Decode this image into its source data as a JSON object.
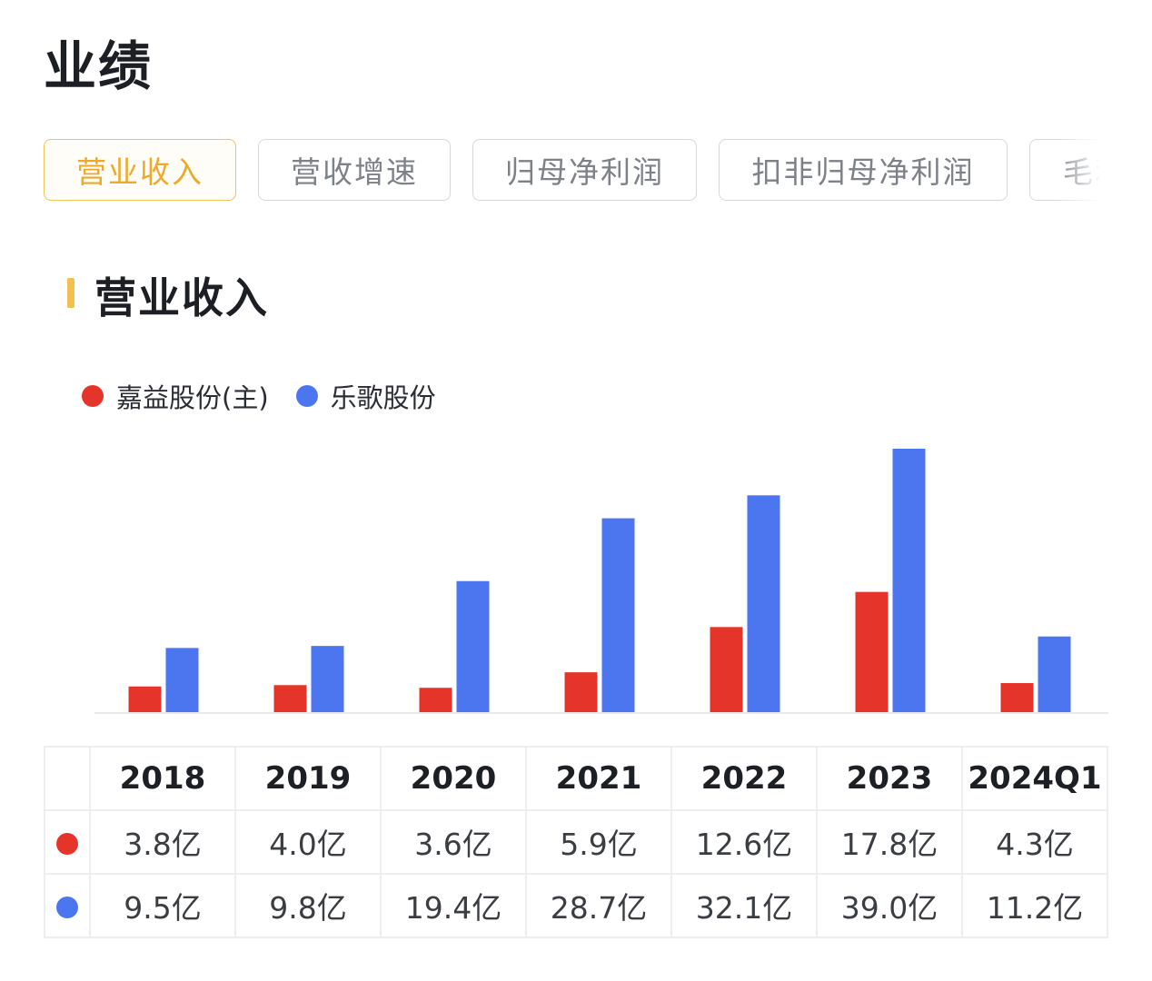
{
  "page_title": "业绩",
  "tabs": [
    {
      "label": "营业收入",
      "active": true
    },
    {
      "label": "营收增速",
      "active": false
    },
    {
      "label": "归母净利润",
      "active": false
    },
    {
      "label": "扣非归母净利润",
      "active": false
    },
    {
      "label": "毛利",
      "active": false
    }
  ],
  "section_title": "营业收入",
  "colors": {
    "accent": "#eda92a",
    "series_red": "#e5352b",
    "series_blue": "#4b76f0"
  },
  "legend": [
    {
      "name": "嘉益股份(主)",
      "color": "#e5352b"
    },
    {
      "name": "乐歌股份",
      "color": "#4b76f0"
    }
  ],
  "chart_data": {
    "type": "bar",
    "categories": [
      "2018",
      "2019",
      "2020",
      "2021",
      "2022",
      "2023",
      "2024Q1"
    ],
    "series": [
      {
        "name": "嘉益股份(主)",
        "color": "#e5352b",
        "values": [
          3.8,
          4.0,
          3.6,
          5.9,
          12.6,
          17.8,
          4.3
        ],
        "labels": [
          "3.8亿",
          "4.0亿",
          "3.6亿",
          "5.9亿",
          "12.6亿",
          "17.8亿",
          "4.3亿"
        ]
      },
      {
        "name": "乐歌股份",
        "color": "#4b76f0",
        "values": [
          9.5,
          9.8,
          19.4,
          28.7,
          32.1,
          39.0,
          11.2
        ],
        "labels": [
          "9.5亿",
          "9.8亿",
          "19.4亿",
          "28.7亿",
          "32.1亿",
          "39.0亿",
          "11.2亿"
        ]
      }
    ],
    "unit": "亿",
    "ylim": [
      0,
      39.0
    ],
    "grid": false,
    "legend_position": "top-left"
  }
}
